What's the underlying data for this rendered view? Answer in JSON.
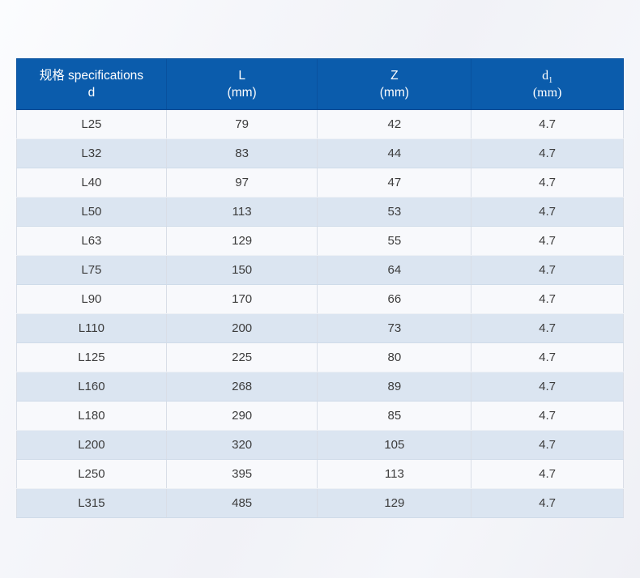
{
  "colors": {
    "header_bg": "#0b5cac",
    "header_divider": "#09519e",
    "row_light": "#f8f9fc",
    "row_shaded": "#dbe5f1",
    "body_text": "#3c3c3c",
    "page_bg": "#f1f2f7"
  },
  "table": {
    "headers": [
      {
        "line1": "规格 specifications",
        "line2": "d"
      },
      {
        "line1": "L",
        "line2": "(mm)"
      },
      {
        "line1": "Z",
        "line2": "(mm)"
      },
      {
        "line1": "d",
        "sub": "1",
        "line2": "(mm)"
      }
    ],
    "rows": [
      {
        "d": "L25",
        "L": "79",
        "Z": "42",
        "d1": "4.7"
      },
      {
        "d": "L32",
        "L": "83",
        "Z": "44",
        "d1": "4.7"
      },
      {
        "d": "L40",
        "L": "97",
        "Z": "47",
        "d1": "4.7"
      },
      {
        "d": "L50",
        "L": "113",
        "Z": "53",
        "d1": "4.7"
      },
      {
        "d": "L63",
        "L": "129",
        "Z": "55",
        "d1": "4.7"
      },
      {
        "d": "L75",
        "L": "150",
        "Z": "64",
        "d1": "4.7"
      },
      {
        "d": "L90",
        "L": "170",
        "Z": "66",
        "d1": "4.7"
      },
      {
        "d": "L110",
        "L": "200",
        "Z": "73",
        "d1": "4.7"
      },
      {
        "d": "L125",
        "L": "225",
        "Z": "80",
        "d1": "4.7"
      },
      {
        "d": "L160",
        "L": "268",
        "Z": "89",
        "d1": "4.7"
      },
      {
        "d": "L180",
        "L": "290",
        "Z": "85",
        "d1": "4.7"
      },
      {
        "d": "L200",
        "L": "320",
        "Z": "105",
        "d1": "4.7"
      },
      {
        "d": "L250",
        "L": "395",
        "Z": "113",
        "d1": "4.7"
      },
      {
        "d": "L315",
        "L": "485",
        "Z": "129",
        "d1": "4.7"
      }
    ]
  },
  "chart_data": {
    "type": "table",
    "title": "",
    "columns": [
      "规格 specifications d",
      "L (mm)",
      "Z (mm)",
      "d1 (mm)"
    ],
    "rows": [
      [
        "L25",
        79,
        42,
        4.7
      ],
      [
        "L32",
        83,
        44,
        4.7
      ],
      [
        "L40",
        97,
        47,
        4.7
      ],
      [
        "L50",
        113,
        53,
        4.7
      ],
      [
        "L63",
        129,
        55,
        4.7
      ],
      [
        "L75",
        150,
        64,
        4.7
      ],
      [
        "L90",
        170,
        66,
        4.7
      ],
      [
        "L110",
        200,
        73,
        4.7
      ],
      [
        "L125",
        225,
        80,
        4.7
      ],
      [
        "L160",
        268,
        89,
        4.7
      ],
      [
        "L180",
        290,
        85,
        4.7
      ],
      [
        "L200",
        320,
        105,
        4.7
      ],
      [
        "L250",
        395,
        113,
        4.7
      ],
      [
        "L315",
        485,
        129,
        4.7
      ]
    ],
    "layout": {
      "header_position": "top",
      "row_striping": "alternating starting light",
      "alignment": "center"
    }
  }
}
